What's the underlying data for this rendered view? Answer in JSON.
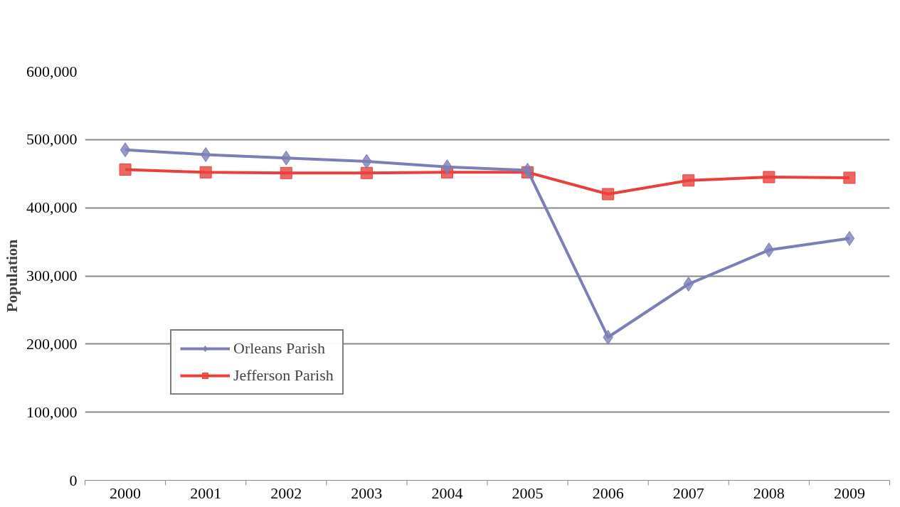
{
  "chart_data": {
    "type": "line",
    "ylabel": "Population",
    "categories": [
      "2000",
      "2001",
      "2002",
      "2003",
      "2004",
      "2005",
      "2006",
      "2007",
      "2008",
      "2009"
    ],
    "series": [
      {
        "name": "Orleans Parish",
        "color": "#7b7fb5",
        "marker": "diamond",
        "values": [
          485000,
          478000,
          473000,
          468000,
          460000,
          455000,
          210000,
          288000,
          338000,
          355000
        ]
      },
      {
        "name": "Jefferson Parish",
        "color": "#e8413c",
        "marker": "square",
        "values": [
          456000,
          452000,
          451000,
          451000,
          452000,
          452000,
          420000,
          440000,
          445000,
          444000
        ]
      }
    ],
    "ylim": [
      0,
      600000
    ],
    "yticks": [
      0,
      {
        "value": 100000,
        "label": "100,000"
      },
      {
        "value": 200000,
        "label": "200,000"
      },
      {
        "value": 300000,
        "label": "300,000"
      },
      {
        "value": 400000,
        "label": "400,000"
      },
      {
        "value": 500000,
        "label": "500,000"
      },
      {
        "value": 600000,
        "label": "600,000"
      }
    ],
    "grid": "y",
    "legend": "bottom left"
  }
}
